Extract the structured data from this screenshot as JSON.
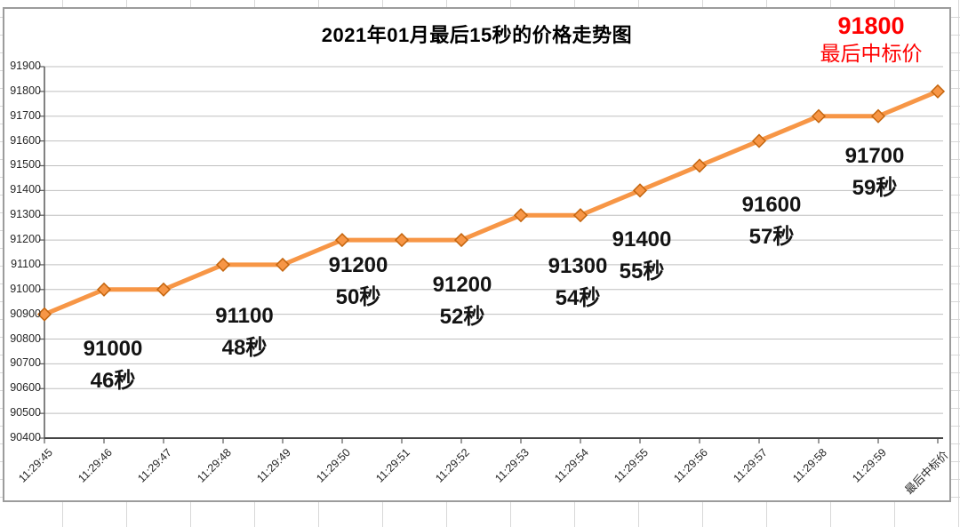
{
  "chart_data": {
    "type": "line",
    "title": "2021年01月最后15秒的价格走势图",
    "x": [
      "11:29:45",
      "11:29:46",
      "11:29:47",
      "11:29:48",
      "11:29:49",
      "11:29:50",
      "11:29:51",
      "11:29:52",
      "11:29:53",
      "11:29:54",
      "11:29:55",
      "11:29:56",
      "11:29:57",
      "11:29:58",
      "11:29:59",
      "最后中标价"
    ],
    "values": [
      90900,
      91000,
      91000,
      91100,
      91100,
      91200,
      91200,
      91200,
      91300,
      91300,
      91400,
      91500,
      91600,
      91700,
      91700,
      91800
    ],
    "ylim": [
      90400,
      91900
    ],
    "y_ticks": [
      90400,
      90500,
      90600,
      90700,
      90800,
      90900,
      91000,
      91100,
      91200,
      91300,
      91400,
      91500,
      91600,
      91700,
      91800,
      91900
    ],
    "xlabel": "",
    "ylabel": "",
    "grid": true,
    "legend": false,
    "line_color": "#F79646",
    "marker": {
      "shape": "diamond",
      "fill": "#F79646",
      "stroke": "#C4650E"
    },
    "data_labels": [
      {
        "point": 1,
        "price": "91000",
        "seconds": "46秒"
      },
      {
        "point": 3,
        "price": "91100",
        "seconds": "48秒"
      },
      {
        "point": 5,
        "price": "91200",
        "seconds": "50秒"
      },
      {
        "point": 7,
        "price": "91200",
        "seconds": "52秒"
      },
      {
        "point": 9,
        "price": "91300",
        "seconds": "54秒"
      },
      {
        "point": 10,
        "price": "91400",
        "seconds": "55秒"
      },
      {
        "point": 12,
        "price": "91600",
        "seconds": "57秒"
      },
      {
        "point": 14,
        "price": "91700",
        "seconds": "59秒"
      }
    ],
    "annotation": {
      "price": "91800",
      "caption": "最后中标价",
      "color": "#FF0000"
    }
  }
}
